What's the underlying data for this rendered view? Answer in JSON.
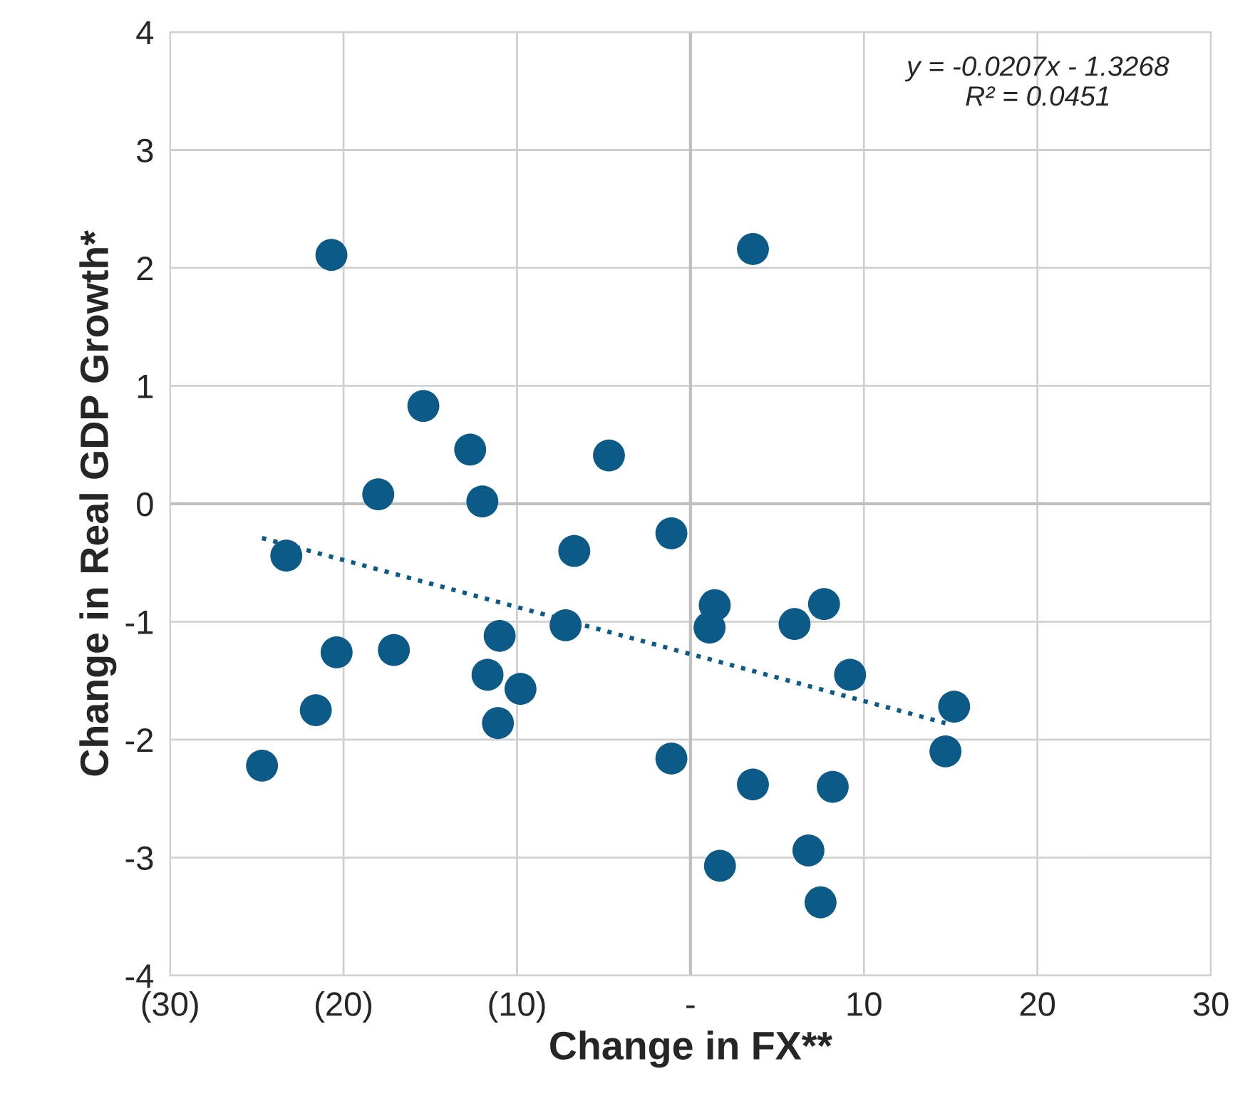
{
  "chart_data": {
    "type": "scatter",
    "xlabel": "Change in FX**",
    "ylabel": "Change in Real GDP Growth*",
    "annotations": [
      "y = -0.0207x - 1.3268\nR² = 0.0451"
    ],
    "xlim": [
      -30,
      30
    ],
    "ylim": [
      -4,
      4
    ],
    "xticks": [
      {
        "value": -30,
        "label": "(30)"
      },
      {
        "value": -20,
        "label": "(20)"
      },
      {
        "value": -10,
        "label": "(10)"
      },
      {
        "value": 0,
        "label": "-"
      },
      10,
      20,
      30
    ],
    "yticks": [
      -4,
      -3,
      -2,
      -1,
      0,
      1,
      2,
      3,
      4
    ],
    "grid": true,
    "series": [
      {
        "color": "#0b5a87",
        "marker": "circle",
        "x": [
          -24.7,
          -23.3,
          -21.6,
          -20.7,
          -20.4,
          -18.0,
          -17.1,
          -15.4,
          -12.7,
          -12.0,
          -11.7,
          -11.0,
          -11.1,
          -9.8,
          -7.2,
          -6.7,
          -4.7,
          -1.1,
          -1.1,
          1.1,
          1.4,
          1.7,
          3.6,
          3.6,
          6.0,
          6.8,
          7.5,
          7.7,
          8.2,
          9.2,
          14.7,
          15.2
        ],
        "values": [
          -2.22,
          -0.44,
          -1.75,
          2.11,
          -1.26,
          0.08,
          -1.24,
          0.83,
          0.46,
          0.02,
          -1.45,
          -1.12,
          -1.86,
          -1.57,
          -1.03,
          -0.4,
          0.41,
          -0.25,
          -2.16,
          -1.05,
          -0.86,
          -3.07,
          2.16,
          -2.38,
          -1.02,
          -2.94,
          -3.38,
          -0.85,
          -2.4,
          -1.45,
          -2.1,
          -1.72
        ]
      },
      {
        "type": "line",
        "color": "#0b5a87",
        "line_style": "dotted",
        "marker": "none",
        "x": [
          -24.7,
          14.7
        ],
        "values": [
          -0.29,
          -1.86
        ]
      }
    ]
  }
}
